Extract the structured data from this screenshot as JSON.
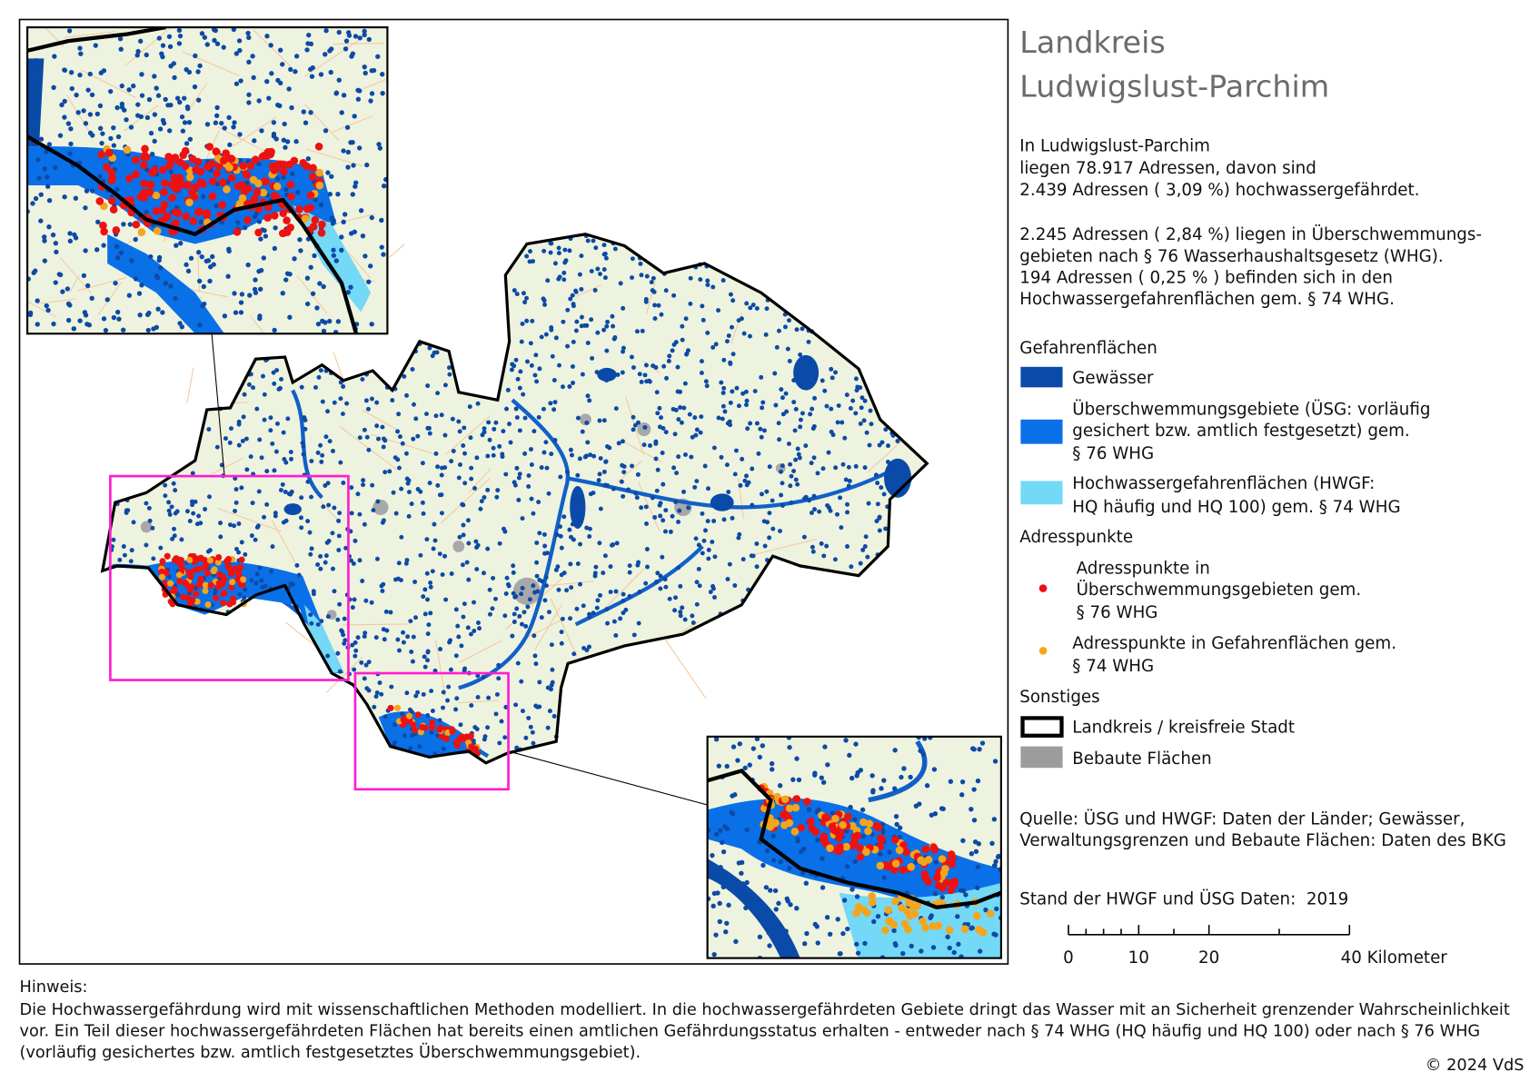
{
  "title": [
    "Landkreis",
    "Ludwigslust-Parchim"
  ],
  "summary": [
    "In Ludwigslust-Parchim",
    "liegen  78.917   Adressen, davon sind",
    " 2.439   Adressen ( 3,09  %) hochwassergefährdet.",
    " 2.245   Adressen ( 2,84  %) liegen in Überschwemmungs-",
    "gebieten nach § 76 Wasserhaushaltsgesetz (WHG).",
    "194    Adressen ( 0,25 % ) befinden sich in den",
    "Hochwassergefahrenflächen gem. § 74 WHG."
  ],
  "legend": {
    "hazard_heading": "Gefahrenflächen",
    "water": "Gewässer",
    "usg": [
      "Überschwemmungsgebiete (ÜSG: vorläufig",
      "gesichert bzw. amtlich festgesetzt) gem.",
      "§ 76 WHG"
    ],
    "hwgf": [
      "Hochwassergefahrenflächen (HWGF:",
      "HQ häufig und HQ 100) gem. § 74 WHG"
    ],
    "address_heading": "Adresspunkte",
    "address_usg": [
      "Adresspunkte in",
      "Überschwemmungsgebieten gem.",
      "§ 76 WHG"
    ],
    "address_hwgf": [
      "Adresspunkte in Gefahrenflächen gem.",
      "§ 74 WHG"
    ],
    "other_heading": "Sonstiges",
    "boundary": "Landkreis / kreisfreie Stadt",
    "built": "Bebaute Flächen"
  },
  "source": [
    "Quelle: ÜSG und HWGF: Daten der Länder; Gewässer,",
    "Verwaltungsgrenzen und Bebaute Flächen: Daten des BKG"
  ],
  "status": "Stand der HWGF und ÜSG Daten:  2019",
  "scale_labels": [
    "0",
    "10",
    "20",
    "40 Kilometer"
  ],
  "note": {
    "heading": "Hinweis:",
    "lines": [
      "Die Hochwassergefährdung wird mit wissenschaftlichen Methoden modelliert. In die hochwassergefährdeten Gebiete dringt das Wasser mit an Sicherheit grenzender Wahrscheinlichkeit",
      "vor. Ein Teil dieser hochwassergefährdeten Flächen hat bereits einen amtlichen Gefährdungsstatus erhalten - entweder nach § 74 WHG (HQ häufig und HQ 100) oder nach § 76 WHG",
      "(vorläufig gesichertes bzw. amtlich festgesetztes Überschwemmungsgebiet)."
    ]
  },
  "copyright": "© 2024 VdS"
}
